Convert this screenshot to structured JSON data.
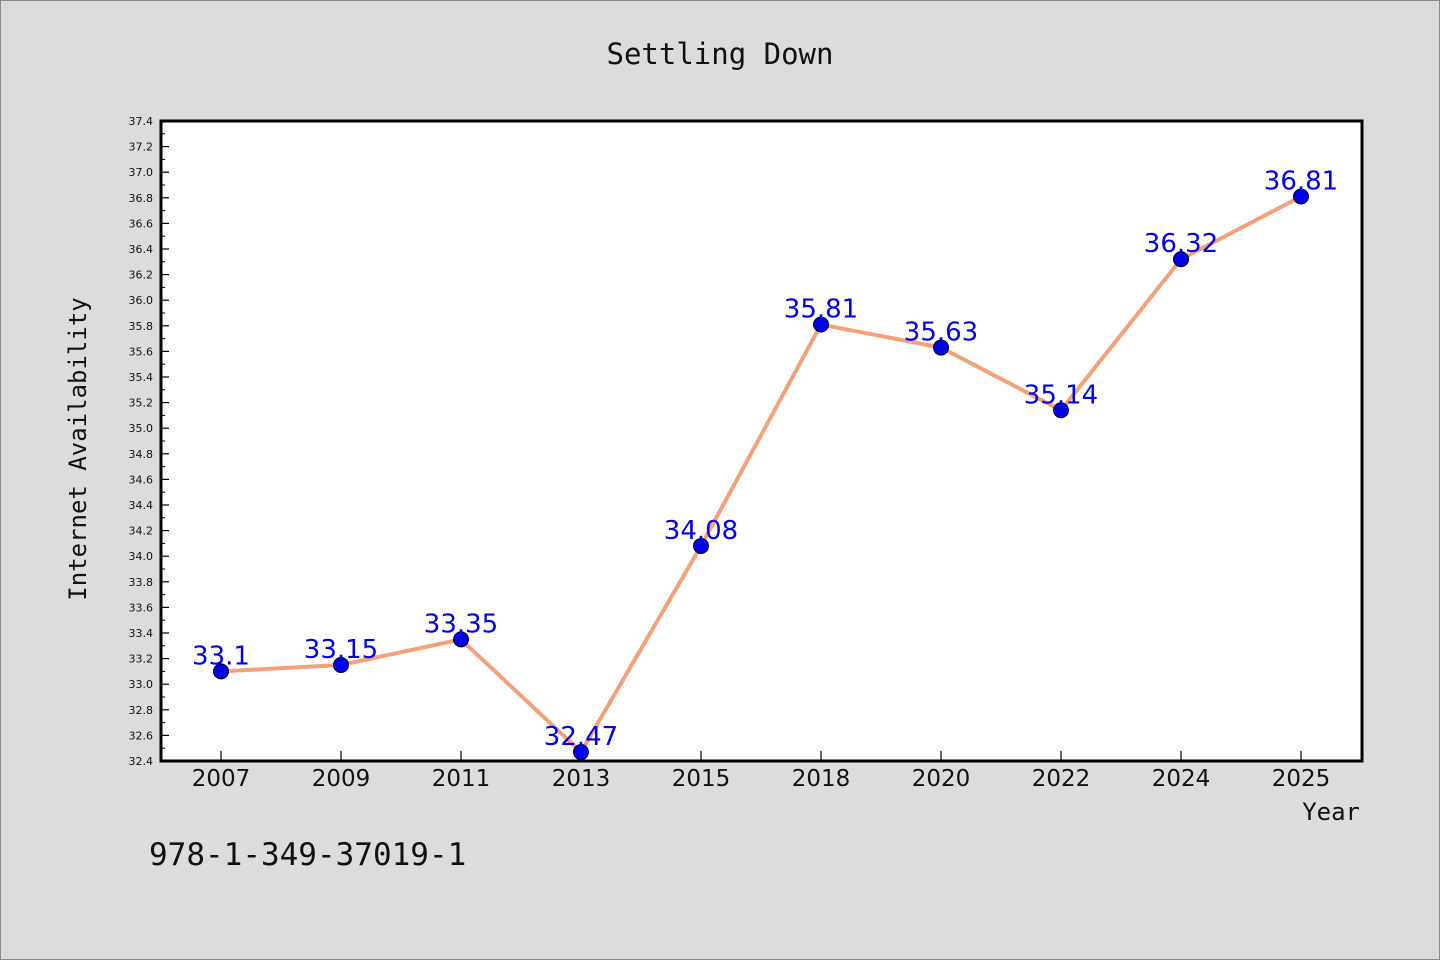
{
  "chart_data": {
    "type": "line",
    "title": "Settling Down",
    "xlabel": "Year",
    "ylabel": "Internet Availability",
    "categories": [
      "2007",
      "2009",
      "2011",
      "2013",
      "2015",
      "2018",
      "2020",
      "2022",
      "2024",
      "2025"
    ],
    "series": [
      {
        "values": [
          33.1,
          33.15,
          33.35,
          32.47,
          34.08,
          35.81,
          35.63,
          35.14,
          36.32,
          36.81
        ],
        "data_labels": [
          "33.1",
          "33.15",
          "33.35",
          "32.47",
          "34.08",
          "35.81",
          "35.63",
          "35.14",
          "36.32",
          "36.81"
        ]
      }
    ],
    "ylim": [
      32.4,
      37.4
    ],
    "ytick_labels": [
      "32.4",
      "32.6",
      "32.8",
      "33.0",
      "33.2",
      "33.4",
      "33.6",
      "33.8",
      "34.0",
      "34.2",
      "34.4",
      "34.6",
      "34.8",
      "35.0",
      "35.2",
      "35.4",
      "35.6",
      "35.8",
      "36.0",
      "36.2",
      "36.4",
      "36.6",
      "36.8",
      "37.0",
      "37.2",
      "37.4"
    ],
    "grid": false,
    "legend": "none",
    "colors": {
      "line": "#f4a07a",
      "marker": "#0000ee",
      "data_label": "#0000ee",
      "plot_background": "#ffffff",
      "figure_background": "#dcdcdc"
    }
  },
  "footer": {
    "code": "978-1-349-37019-1"
  }
}
